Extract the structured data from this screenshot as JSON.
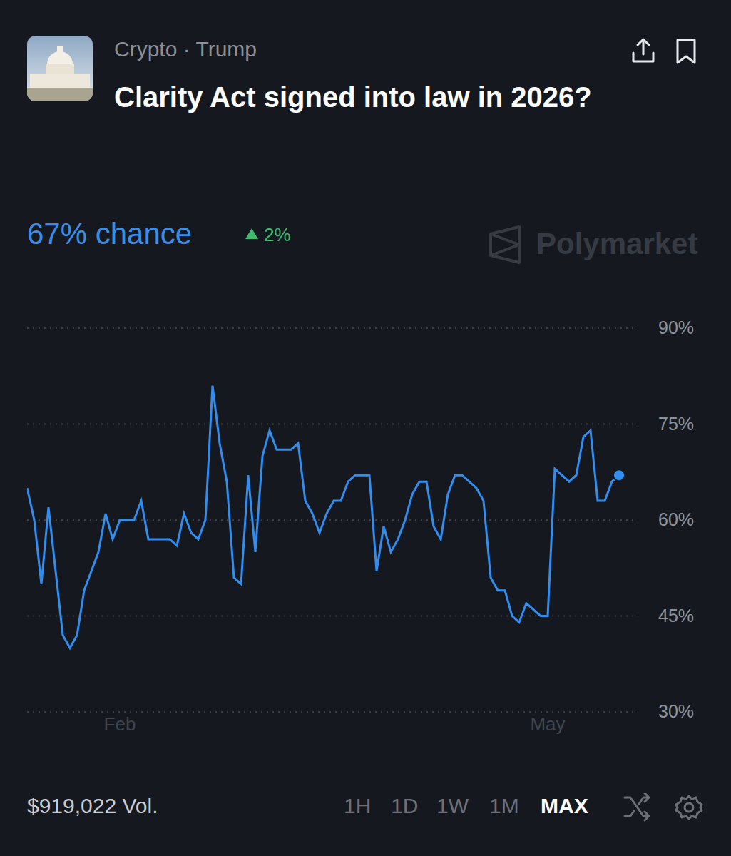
{
  "header": {
    "category": "Crypto · Trump",
    "title": "Clarity Act signed into law in 2026?",
    "headline": "67% chance",
    "change": "2%",
    "watermark": "Polymarket"
  },
  "chart_data": {
    "type": "line",
    "categories": [
      null,
      null,
      null,
      null,
      null,
      null,
      null,
      null,
      null,
      null,
      null,
      null,
      null,
      "Feb",
      null,
      null,
      null,
      null,
      null,
      null,
      null,
      null,
      null,
      null,
      null,
      null,
      null,
      null,
      null,
      null,
      null,
      null,
      null,
      null,
      null,
      null,
      null,
      null,
      null,
      null,
      null,
      null,
      null,
      null,
      null,
      null,
      null,
      null,
      null,
      null,
      null,
      null,
      null,
      null,
      null,
      null,
      null,
      null,
      null,
      null,
      null,
      null,
      null,
      null,
      null,
      null,
      null,
      null,
      null,
      null,
      null,
      null,
      null,
      "May",
      null,
      null,
      null,
      null,
      null,
      null,
      null,
      null,
      null,
      null
    ],
    "values": [
      65,
      60,
      50,
      62,
      52,
      42,
      40,
      42,
      49,
      52,
      55,
      61,
      57,
      60,
      60,
      60,
      63,
      57,
      57,
      57,
      57,
      56,
      61,
      58,
      57,
      60,
      81,
      72,
      66,
      51,
      50,
      67,
      55,
      70,
      74,
      71,
      71,
      71,
      72,
      63,
      61,
      58,
      61,
      63,
      63,
      66,
      67,
      67,
      67,
      52,
      59,
      55,
      57,
      60,
      64,
      66,
      66,
      59,
      57,
      64,
      67,
      67,
      66,
      65,
      63,
      51,
      49,
      49,
      45,
      44,
      47,
      46,
      45,
      45,
      68,
      67,
      66,
      67,
      73,
      74,
      63,
      63,
      66,
      67
    ],
    "color": "#2f8ef0",
    "ylim": [
      30,
      90
    ],
    "yticks": [
      {
        "value": 30,
        "label": "30%"
      },
      {
        "value": 45,
        "label": "45%"
      },
      {
        "value": 60,
        "label": "60%"
      },
      {
        "value": 75,
        "label": "75%"
      },
      {
        "value": 90,
        "label": "90%"
      }
    ],
    "grid": true
  },
  "footer": {
    "volume": "$919,022 Vol.",
    "time_ranges": [
      "1H",
      "1D",
      "1W",
      "1M",
      "MAX"
    ],
    "selected_range": "MAX"
  }
}
